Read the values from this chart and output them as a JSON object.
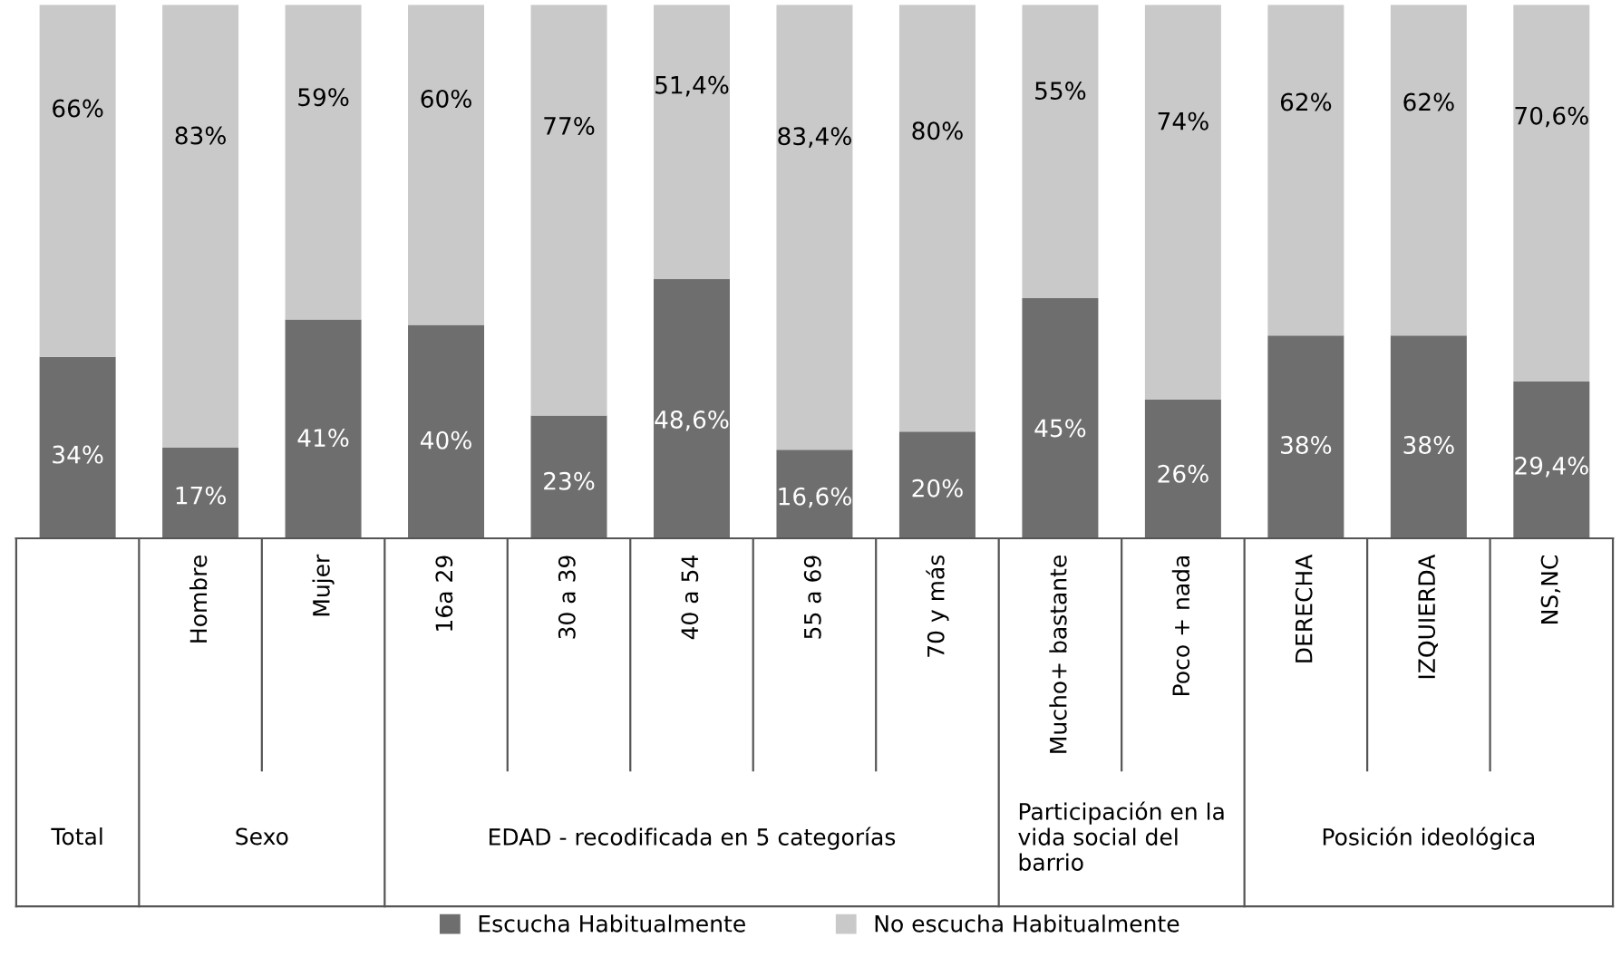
{
  "chart_data": {
    "type": "bar",
    "stacked": true,
    "relative": false,
    "categories": [
      null,
      "Hombre",
      "Mujer",
      "16a 29",
      "30 a 39",
      "40 a 54",
      "55 a 69",
      "70 y más",
      "Mucho+ bastante",
      "Poco + nada",
      "DERECHA",
      "IZQUIERDA",
      "NS,NC"
    ],
    "series": [
      {
        "name": "Escucha Habitualmente",
        "color": "#6e6e6e",
        "values": [
          34,
          17,
          41,
          40,
          23,
          48.6,
          16.6,
          20,
          45,
          26,
          38,
          38,
          29.4
        ],
        "value_labels": [
          "34%",
          "17%",
          "41%",
          "40%",
          "23%",
          "48,6%",
          "16,6%",
          "20%",
          "45%",
          "26%",
          "38%",
          "38%",
          "29,4%"
        ]
      },
      {
        "name": "No escucha Habitualmente",
        "color": "#c9c9c9",
        "values": [
          66,
          83,
          59,
          60,
          77,
          51.4,
          83.4,
          80,
          55,
          74,
          62,
          62,
          70.6
        ],
        "value_labels": [
          "66%",
          "83%",
          "59%",
          "60%",
          "77%",
          "51,4%",
          "83,4%",
          "80%",
          "55%",
          "74%",
          "62%",
          "62%",
          "70,6%"
        ]
      }
    ],
    "annotations": [
      "Total",
      "Sexo",
      "EDAD - recodificada en 5 categorías",
      "Participación en la vida social del barrio",
      "Posición ideológica"
    ],
    "legend": "bottom"
  }
}
